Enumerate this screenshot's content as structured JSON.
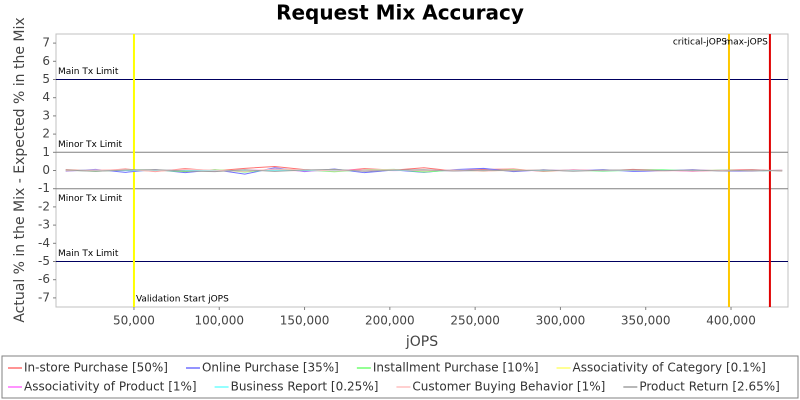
{
  "chart_data": {
    "type": "line",
    "title": "Request Mix Accuracy",
    "x_label": "jOPS",
    "y_label": "Actual % in the Mix - Expected % in the Mix",
    "xlim": [
      4300,
      433400
    ],
    "ylim": [
      -7.5,
      7.5
    ],
    "xticks": [
      {
        "value": 50000,
        "label": "50,000"
      },
      {
        "value": 100000,
        "label": "100,000"
      },
      {
        "value": 150000,
        "label": "150,000"
      },
      {
        "value": 200000,
        "label": "200,000"
      },
      {
        "value": 250000,
        "label": "250,000"
      },
      {
        "value": 300000,
        "label": "300,000"
      },
      {
        "value": 350000,
        "label": "350,000"
      },
      {
        "value": 400000,
        "label": "400,000"
      }
    ],
    "yticks": [
      -7,
      -6,
      -5,
      -4,
      -3,
      -2,
      -1,
      0,
      1,
      2,
      3,
      4,
      5,
      6,
      7
    ],
    "reference_lines": [
      {
        "label": "Main Tx Limit",
        "value": 5,
        "color": "#000060",
        "label_anchor": "above"
      },
      {
        "label": "Minor Tx Limit",
        "value": 1,
        "color": "#808080",
        "label_anchor": "above"
      },
      {
        "label": "Minor Tx Limit",
        "value": -1,
        "color": "#808080",
        "label_anchor": "below"
      },
      {
        "label": "Main Tx Limit",
        "value": -5,
        "color": "#000060",
        "label_anchor": "above"
      }
    ],
    "markers": [
      {
        "label": "Validation Start jOPS",
        "value": 50000,
        "color": "#ffff00",
        "label_anchor": "bottom-right"
      },
      {
        "label": "critical-jOPS",
        "value": 398800,
        "color": "#ffc800",
        "label_anchor": "top-left"
      },
      {
        "label": "max-jOPS",
        "value": 422800,
        "color": "#e00000",
        "label_anchor": "top-left"
      }
    ],
    "x": [
      10000,
      27500,
      45000,
      62500,
      80000,
      97500,
      115000,
      132500,
      150000,
      167500,
      185000,
      202500,
      220000,
      237500,
      255000,
      272500,
      290000,
      307500,
      325000,
      342500,
      360000,
      377500,
      395000,
      412500,
      430000
    ],
    "series": [
      {
        "name": "In-store Purchase [50%]",
        "color": "#ff7070",
        "values": [
          0.05,
          -0.03,
          0.08,
          -0.06,
          0.1,
          -0.02,
          0.12,
          0.22,
          0.05,
          -0.04,
          0.1,
          0.02,
          0.15,
          -0.03,
          0.06,
          0.08,
          -0.05,
          0.04,
          -0.02,
          0.06,
          0.03,
          -0.04,
          0.02,
          0.05,
          -0.03
        ]
      },
      {
        "name": "Online Purchase [35%]",
        "color": "#7070ff",
        "values": [
          -0.04,
          0.06,
          -0.1,
          0.05,
          -0.12,
          0.04,
          -0.2,
          0.15,
          -0.06,
          0.08,
          -0.12,
          0.03,
          -0.1,
          0.05,
          0.12,
          -0.06,
          0.04,
          -0.03,
          0.05,
          -0.05,
          -0.02,
          0.05,
          -0.03,
          -0.04,
          0.02
        ]
      },
      {
        "name": "Installment Purchase [10%]",
        "color": "#70ff70",
        "values": [
          0.02,
          -0.05,
          0.04,
          0.03,
          -0.06,
          0.05,
          -0.08,
          0.06,
          0.03,
          -0.07,
          0.04,
          0.06,
          -0.08,
          0.02,
          -0.04,
          0.05,
          -0.02,
          0.03,
          -0.04,
          0.02,
          0.04,
          -0.02,
          0.03,
          -0.02,
          0.01
        ]
      },
      {
        "name": "Associativity of Category [0.1%]",
        "color": "#ffff70",
        "values": [
          0,
          0.01,
          0,
          -0.01,
          0,
          0.01,
          0,
          0,
          -0.01,
          0,
          0.01,
          0,
          0,
          0,
          -0.01,
          0,
          0,
          0.01,
          0,
          0,
          0,
          -0.01,
          0,
          0,
          0
        ]
      },
      {
        "name": "Associativity of Product [1%]",
        "color": "#ff70ff",
        "values": [
          0.01,
          -0.02,
          0.03,
          -0.01,
          0.02,
          -0.03,
          0.01,
          0.02,
          -0.02,
          0.01,
          0.03,
          -0.01,
          0.02,
          -0.02,
          0.01,
          0,
          -0.01,
          0.02,
          -0.01,
          0.01,
          0,
          -0.02,
          0.01,
          0,
          0.01
        ]
      },
      {
        "name": "Business Report [0.25%]",
        "color": "#70ffff",
        "values": [
          0,
          0.01,
          -0.01,
          0,
          0.01,
          0,
          -0.01,
          0.01,
          0,
          -0.01,
          0,
          0.01,
          0,
          -0.01,
          0,
          0.01,
          0,
          0,
          -0.01,
          0,
          0.01,
          0,
          0,
          0,
          -0.01
        ]
      },
      {
        "name": "Customer Buying Behavior [1%]",
        "color": "#ffc0c0",
        "values": [
          -0.02,
          0.03,
          0.05,
          -0.04,
          0.06,
          0.02,
          -0.05,
          0.08,
          0.04,
          -0.03,
          0.02,
          0.05,
          -0.02,
          0.03,
          -0.04,
          0.02,
          0.03,
          -0.02,
          0.01,
          0.02,
          -0.03,
          0.02,
          0.01,
          -0.02,
          0.02
        ]
      },
      {
        "name": "Product Return [2.65%]",
        "color": "#a0a0a0",
        "values": [
          0.03,
          -0.04,
          0.02,
          0.05,
          -0.03,
          -0.06,
          0.04,
          -0.05,
          0.03,
          0.06,
          -0.04,
          0.02,
          0.04,
          -0.03,
          0.02,
          -0.02,
          0.03,
          -0.04,
          0.02,
          0.03,
          -0.01,
          0.02,
          -0.03,
          0.02,
          -0.02
        ]
      }
    ]
  }
}
